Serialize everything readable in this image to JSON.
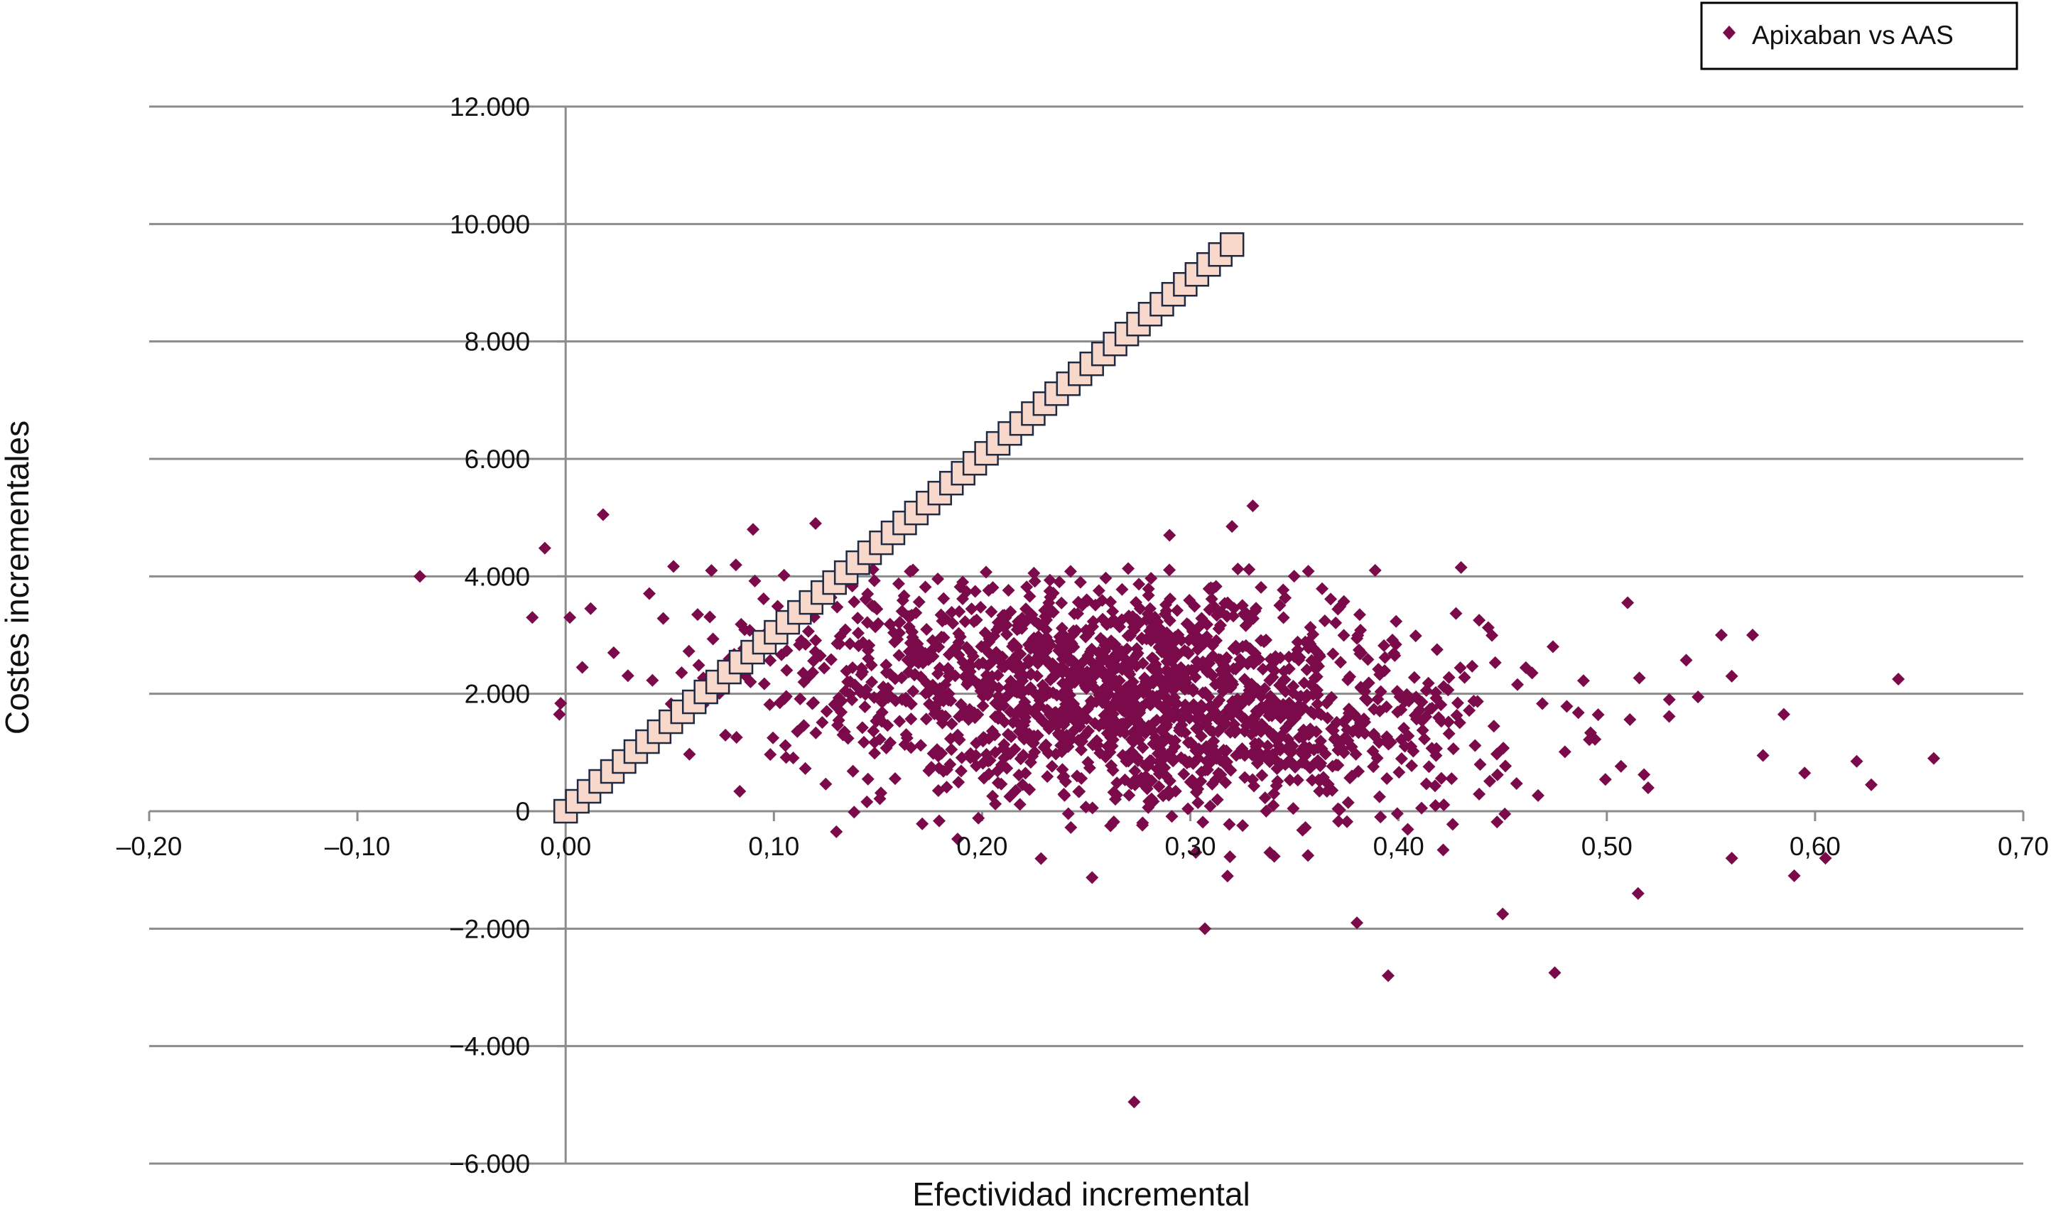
{
  "colors": {
    "scatter": "#7a0a4a",
    "threshold_fill": "#f9d8cc",
    "threshold_stroke": "#1e2a44",
    "grid": "#8c8c8c",
    "axis": "#8c8c8c"
  },
  "chart_data": {
    "type": "scatter",
    "title": "",
    "xlabel": "Efectividad incremental",
    "ylabel": "Costes incrementales",
    "xlim": [
      -0.2,
      0.7
    ],
    "ylim": [
      -6000,
      12000
    ],
    "x_ticks": [
      -0.2,
      -0.1,
      0.0,
      0.1,
      0.2,
      0.3,
      0.4,
      0.5,
      0.6,
      0.7
    ],
    "x_tick_labels": [
      "–0,20",
      "–0,10",
      "0,00",
      "0,10",
      "0,20",
      "0,30",
      "0,40",
      "0,50",
      "0,60",
      "0,70"
    ],
    "y_ticks": [
      -6000,
      -4000,
      -2000,
      0,
      2000,
      4000,
      6000,
      8000,
      10000,
      12000
    ],
    "y_tick_labels": [
      "−6.000",
      "−4.000",
      "−2.000",
      "0",
      "2.000",
      "4.000",
      "6.000",
      "8.000",
      "10.000",
      "12.000"
    ],
    "grid": "horizontal",
    "legend_position": "top-right",
    "series": [
      {
        "name": "Apixaban vs AAS",
        "marker": "diamond",
        "cloud": {
          "n_points": 1800,
          "x_mean": 0.27,
          "x_sd": 0.085,
          "y_mean": 2000,
          "y_sd": 1000,
          "correlation": -0.25
        },
        "points": [
          [
            -0.07,
            4000
          ],
          [
            -0.01,
            4480
          ],
          [
            -0.016,
            3300
          ],
          [
            -0.003,
            1650
          ],
          [
            0.002,
            3300
          ],
          [
            0.018,
            5050
          ],
          [
            0.012,
            3450
          ],
          [
            0.008,
            2450
          ],
          [
            0.09,
            4800
          ],
          [
            0.12,
            4900
          ],
          [
            0.33,
            5200
          ],
          [
            0.32,
            4850
          ],
          [
            0.29,
            4700
          ],
          [
            0.43,
            4150
          ],
          [
            0.51,
            3550
          ],
          [
            0.555,
            3000
          ],
          [
            0.57,
            3000
          ],
          [
            0.64,
            2250
          ],
          [
            0.657,
            900
          ],
          [
            0.62,
            850
          ],
          [
            0.627,
            450
          ],
          [
            0.595,
            650
          ],
          [
            0.585,
            1650
          ],
          [
            0.575,
            950
          ],
          [
            0.56,
            2300
          ],
          [
            0.53,
            1900
          ],
          [
            0.605,
            -800
          ],
          [
            0.59,
            -1100
          ],
          [
            0.56,
            -800
          ],
          [
            0.515,
            -1400
          ],
          [
            0.475,
            -2750
          ],
          [
            0.395,
            -2800
          ],
          [
            0.38,
            -1900
          ],
          [
            0.45,
            -1750
          ],
          [
            0.307,
            -2000
          ],
          [
            0.273,
            -4950
          ],
          [
            0.13,
            -350
          ],
          [
            0.117,
            2300
          ],
          [
            0.145,
            3700
          ],
          [
            0.07,
            4100
          ]
        ]
      },
      {
        "name": "",
        "marker": "square",
        "line": {
          "x_start": 0.0,
          "x_end": 0.32,
          "y_start": 0,
          "y_end": 9650,
          "n_points": 58
        }
      }
    ]
  },
  "legend": {
    "label": "Apixaban vs AAS"
  }
}
